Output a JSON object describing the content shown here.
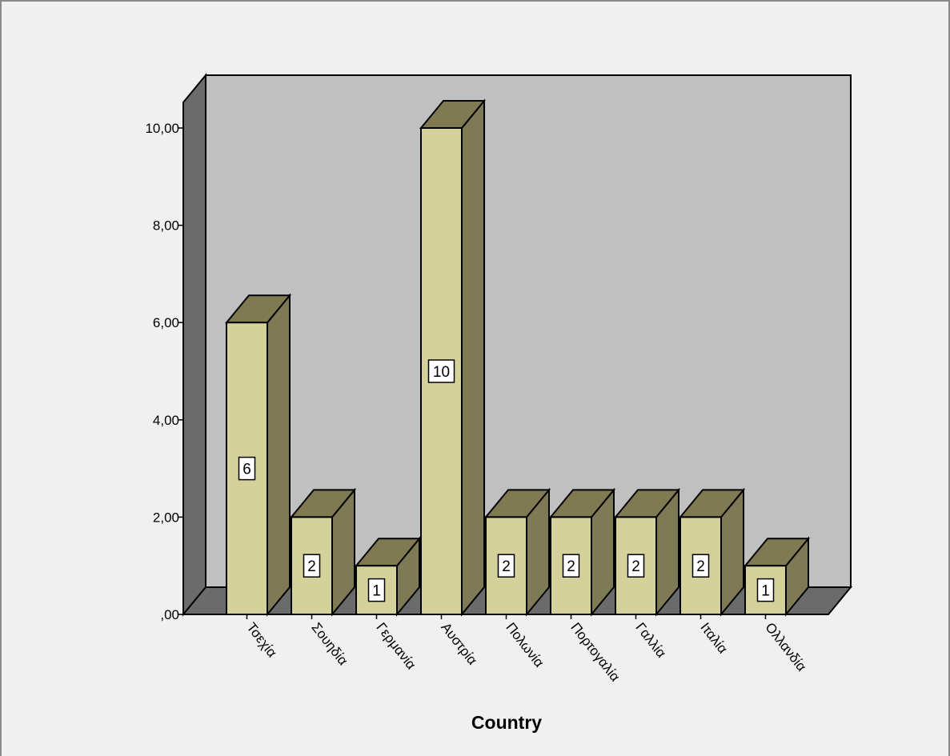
{
  "chart_data": {
    "type": "bar",
    "categories": [
      "Τσεχία",
      "Σουηδία",
      "Γερμανία",
      "Αυστρία",
      "Πολωνία",
      "Πορτογαλία",
      "Γαλλία",
      "Ιταλία",
      "Ολλανδία"
    ],
    "values": [
      6,
      2,
      1,
      10,
      2,
      2,
      2,
      2,
      1
    ],
    "data_labels": [
      "6",
      "2",
      "1",
      "10",
      "2",
      "2",
      "2",
      "2",
      "1"
    ],
    "y_ticks": [
      ",00",
      "2,00",
      "4,00",
      "6,00",
      "8,00",
      "10,00"
    ],
    "y_tick_values": [
      0,
      2,
      4,
      6,
      8,
      10
    ],
    "xlabel": "Country",
    "ylabel": "",
    "ylim": [
      0,
      10
    ],
    "grid": false,
    "style": "3d",
    "colors": {
      "background": "#f0f0f0",
      "plot_back": "#c0c0c0",
      "plot_side": "#6b6b6b",
      "bar_front": "#d5d19a",
      "bar_top": "#807a52",
      "bar_side": "#7e7a56",
      "outline": "#000000"
    }
  }
}
